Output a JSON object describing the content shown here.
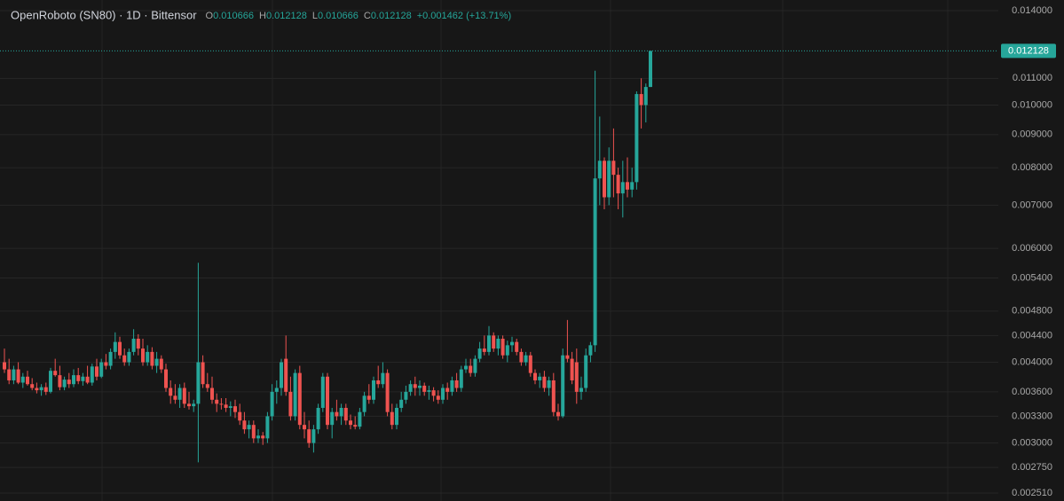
{
  "chart_data": {
    "type": "candlestick",
    "title": "OpenRoboto (SN80) · 1D · Bittensor",
    "ohlc_labels": [
      "O",
      "H",
      "L",
      "C"
    ],
    "change": "+0.001462 (+13.71%)",
    "up_color": "#26a69a",
    "down_color": "#ef5350",
    "log": true,
    "grid": true,
    "ylim": [
      0.00244,
      0.01454
    ],
    "yticks": [
      {
        "value": 0.014,
        "label": "0.014000"
      },
      {
        "value": 0.011,
        "label": "0.011000"
      },
      {
        "value": 0.01,
        "label": "0.010000"
      },
      {
        "value": 0.009,
        "label": "0.009000"
      },
      {
        "value": 0.008,
        "label": "0.008000"
      },
      {
        "value": 0.007,
        "label": "0.007000"
      },
      {
        "value": 0.006,
        "label": "0.006000"
      },
      {
        "value": 0.0054,
        "label": "0.005400"
      },
      {
        "value": 0.0048,
        "label": "0.004800"
      },
      {
        "value": 0.0044,
        "label": "0.004400"
      },
      {
        "value": 0.004,
        "label": "0.004000"
      },
      {
        "value": 0.0036,
        "label": "0.003600"
      },
      {
        "value": 0.0033,
        "label": "0.003300"
      },
      {
        "value": 0.003,
        "label": "0.003000"
      },
      {
        "value": 0.00275,
        "label": "0.002750"
      },
      {
        "value": 0.00251,
        "label": "0.002510"
      }
    ],
    "last_price": 0.012128,
    "ohlc": [
      [
        0.004,
        0.0042,
        0.00385,
        0.0039
      ],
      [
        0.0039,
        0.00405,
        0.0037,
        0.00375
      ],
      [
        0.00375,
        0.00395,
        0.0037,
        0.0039
      ],
      [
        0.0039,
        0.004,
        0.0037,
        0.00372
      ],
      [
        0.00372,
        0.00385,
        0.00365,
        0.0038
      ],
      [
        0.0038,
        0.00388,
        0.00368,
        0.0037
      ],
      [
        0.0037,
        0.00378,
        0.00362,
        0.00365
      ],
      [
        0.00365,
        0.00372,
        0.00358,
        0.00362
      ],
      [
        0.00362,
        0.0037,
        0.00355,
        0.00366
      ],
      [
        0.00366,
        0.00372,
        0.00356,
        0.0036
      ],
      [
        0.0036,
        0.00392,
        0.00358,
        0.00388
      ],
      [
        0.00388,
        0.00405,
        0.0038,
        0.00382
      ],
      [
        0.00382,
        0.00395,
        0.00362,
        0.00366
      ],
      [
        0.00366,
        0.0038,
        0.00362,
        0.00376
      ],
      [
        0.00376,
        0.00385,
        0.00365,
        0.0037
      ],
      [
        0.0037,
        0.0039,
        0.00366,
        0.00382
      ],
      [
        0.00382,
        0.00392,
        0.0037,
        0.00374
      ],
      [
        0.00374,
        0.00385,
        0.00368,
        0.0038
      ],
      [
        0.0038,
        0.00395,
        0.0037,
        0.00372
      ],
      [
        0.00372,
        0.00398,
        0.00368,
        0.00394
      ],
      [
        0.00394,
        0.00405,
        0.00375,
        0.0038
      ],
      [
        0.0038,
        0.00405,
        0.00378,
        0.004
      ],
      [
        0.004,
        0.00412,
        0.0039,
        0.00395
      ],
      [
        0.00395,
        0.0042,
        0.0039,
        0.00415
      ],
      [
        0.00415,
        0.00445,
        0.00405,
        0.0043
      ],
      [
        0.0043,
        0.00438,
        0.00405,
        0.0041
      ],
      [
        0.0041,
        0.0042,
        0.00395,
        0.004
      ],
      [
        0.004,
        0.0042,
        0.00395,
        0.00415
      ],
      [
        0.00415,
        0.0045,
        0.0041,
        0.00435
      ],
      [
        0.00435,
        0.00442,
        0.0041,
        0.0042
      ],
      [
        0.0042,
        0.00435,
        0.00395,
        0.004
      ],
      [
        0.004,
        0.00425,
        0.00395,
        0.00415
      ],
      [
        0.00415,
        0.00422,
        0.0039,
        0.00395
      ],
      [
        0.00395,
        0.00415,
        0.00385,
        0.00405
      ],
      [
        0.00405,
        0.0041,
        0.00385,
        0.0039
      ],
      [
        0.0039,
        0.00398,
        0.0036,
        0.00365
      ],
      [
        0.00365,
        0.00375,
        0.00345,
        0.00355
      ],
      [
        0.00355,
        0.0037,
        0.00345,
        0.0035
      ],
      [
        0.0035,
        0.0037,
        0.0034,
        0.00365
      ],
      [
        0.00365,
        0.00372,
        0.0034,
        0.00345
      ],
      [
        0.00345,
        0.0036,
        0.00338,
        0.00342
      ],
      [
        0.00342,
        0.0035,
        0.00335,
        0.00345
      ],
      [
        0.00345,
        0.0057,
        0.0028,
        0.004
      ],
      [
        0.004,
        0.0041,
        0.00365,
        0.0037
      ],
      [
        0.0037,
        0.00385,
        0.0036,
        0.00365
      ],
      [
        0.00365,
        0.0038,
        0.00345,
        0.0035
      ],
      [
        0.0035,
        0.00358,
        0.00335,
        0.00345
      ],
      [
        0.00345,
        0.00352,
        0.00338,
        0.00344
      ],
      [
        0.00344,
        0.00352,
        0.00335,
        0.0034
      ],
      [
        0.0034,
        0.00348,
        0.0033,
        0.00342
      ],
      [
        0.00342,
        0.0035,
        0.00328,
        0.00335
      ],
      [
        0.00335,
        0.00345,
        0.0032,
        0.00325
      ],
      [
        0.00325,
        0.00335,
        0.0031,
        0.00315
      ],
      [
        0.00315,
        0.00325,
        0.00305,
        0.0032
      ],
      [
        0.0032,
        0.00325,
        0.003,
        0.00305
      ],
      [
        0.00305,
        0.00315,
        0.003,
        0.00308
      ],
      [
        0.00308,
        0.00312,
        0.00298,
        0.00305
      ],
      [
        0.00305,
        0.00335,
        0.003,
        0.0033
      ],
      [
        0.0033,
        0.0037,
        0.00325,
        0.0036
      ],
      [
        0.0036,
        0.00375,
        0.00345,
        0.00365
      ],
      [
        0.00365,
        0.00405,
        0.00355,
        0.004
      ],
      [
        0.00405,
        0.0044,
        0.00355,
        0.0036
      ],
      [
        0.0036,
        0.0038,
        0.00325,
        0.0033
      ],
      [
        0.0033,
        0.0039,
        0.00325,
        0.00385
      ],
      [
        0.00385,
        0.00395,
        0.00315,
        0.0032
      ],
      [
        0.0032,
        0.00335,
        0.00305,
        0.00315
      ],
      [
        0.00315,
        0.00325,
        0.00295,
        0.003
      ],
      [
        0.003,
        0.0032,
        0.0029,
        0.00315
      ],
      [
        0.00315,
        0.00345,
        0.0031,
        0.0034
      ],
      [
        0.0034,
        0.00385,
        0.00335,
        0.0038
      ],
      [
        0.0038,
        0.00385,
        0.00315,
        0.0032
      ],
      [
        0.0032,
        0.0034,
        0.00305,
        0.00335
      ],
      [
        0.00335,
        0.0035,
        0.00325,
        0.0033
      ],
      [
        0.0033,
        0.00345,
        0.0032,
        0.0034
      ],
      [
        0.0034,
        0.00345,
        0.0032,
        0.00325
      ],
      [
        0.00325,
        0.00332,
        0.00315,
        0.0032
      ],
      [
        0.0032,
        0.0033,
        0.00315,
        0.00318
      ],
      [
        0.00318,
        0.0034,
        0.00315,
        0.00335
      ],
      [
        0.00335,
        0.0036,
        0.0033,
        0.00355
      ],
      [
        0.00355,
        0.0037,
        0.00345,
        0.0035
      ],
      [
        0.0035,
        0.0038,
        0.00345,
        0.00375
      ],
      [
        0.00375,
        0.00395,
        0.00365,
        0.0037
      ],
      [
        0.0037,
        0.004,
        0.00365,
        0.00385
      ],
      [
        0.00385,
        0.0039,
        0.0033,
        0.00335
      ],
      [
        0.00335,
        0.00345,
        0.00315,
        0.0032
      ],
      [
        0.0032,
        0.00345,
        0.00315,
        0.0034
      ],
      [
        0.0034,
        0.0036,
        0.00335,
        0.0035
      ],
      [
        0.0035,
        0.00368,
        0.00345,
        0.0036
      ],
      [
        0.0036,
        0.00375,
        0.00355,
        0.0037
      ],
      [
        0.0037,
        0.0038,
        0.00355,
        0.00365
      ],
      [
        0.00365,
        0.00375,
        0.00355,
        0.00368
      ],
      [
        0.00368,
        0.00372,
        0.00355,
        0.0036
      ],
      [
        0.0036,
        0.00368,
        0.0035,
        0.00362
      ],
      [
        0.00362,
        0.00366,
        0.00348,
        0.00355
      ],
      [
        0.00355,
        0.00362,
        0.00345,
        0.0035
      ],
      [
        0.0035,
        0.0037,
        0.00345,
        0.00365
      ],
      [
        0.00365,
        0.00372,
        0.0035,
        0.0036
      ],
      [
        0.0036,
        0.0038,
        0.00355,
        0.00375
      ],
      [
        0.00375,
        0.00385,
        0.0036,
        0.00365
      ],
      [
        0.00365,
        0.00395,
        0.0036,
        0.0039
      ],
      [
        0.0039,
        0.00405,
        0.00385,
        0.00395
      ],
      [
        0.00395,
        0.00405,
        0.0038,
        0.00385
      ],
      [
        0.00385,
        0.0041,
        0.0038,
        0.00405
      ],
      [
        0.00405,
        0.0043,
        0.004,
        0.0042
      ],
      [
        0.0042,
        0.0044,
        0.0041,
        0.00415
      ],
      [
        0.00415,
        0.00455,
        0.0041,
        0.0044
      ],
      [
        0.0044,
        0.00445,
        0.00415,
        0.0042
      ],
      [
        0.0042,
        0.0044,
        0.0041,
        0.00435
      ],
      [
        0.00435,
        0.0044,
        0.00405,
        0.0041
      ],
      [
        0.0041,
        0.00432,
        0.004,
        0.00425
      ],
      [
        0.00425,
        0.00438,
        0.00415,
        0.0043
      ],
      [
        0.0043,
        0.00435,
        0.0041,
        0.00415
      ],
      [
        0.00415,
        0.0042,
        0.00395,
        0.004
      ],
      [
        0.004,
        0.00415,
        0.00395,
        0.0041
      ],
      [
        0.0041,
        0.00415,
        0.0038,
        0.00385
      ],
      [
        0.00385,
        0.0039,
        0.0037,
        0.00375
      ],
      [
        0.00375,
        0.00385,
        0.00365,
        0.0038
      ],
      [
        0.0038,
        0.00388,
        0.0036,
        0.00365
      ],
      [
        0.00365,
        0.0038,
        0.00355,
        0.00375
      ],
      [
        0.00375,
        0.00385,
        0.0033,
        0.00335
      ],
      [
        0.00335,
        0.00345,
        0.00325,
        0.0033
      ],
      [
        0.0033,
        0.0042,
        0.00328,
        0.0041
      ],
      [
        0.0041,
        0.00465,
        0.004,
        0.00405
      ],
      [
        0.00405,
        0.00415,
        0.0037,
        0.00375
      ],
      [
        0.004,
        0.0042,
        0.00345,
        0.0036
      ],
      [
        0.0036,
        0.0038,
        0.0035,
        0.00365
      ],
      [
        0.00365,
        0.0042,
        0.0036,
        0.0041
      ],
      [
        0.0041,
        0.0043,
        0.004,
        0.00425
      ],
      [
        0.00425,
        0.0113,
        0.00415,
        0.0077
      ],
      [
        0.0077,
        0.0096,
        0.007,
        0.0082
      ],
      [
        0.0082,
        0.0083,
        0.0069,
        0.0072
      ],
      [
        0.0072,
        0.0086,
        0.007,
        0.0082
      ],
      [
        0.0082,
        0.0092,
        0.0072,
        0.0078
      ],
      [
        0.0078,
        0.008,
        0.0069,
        0.0073
      ],
      [
        0.0073,
        0.0082,
        0.0067,
        0.0076
      ],
      [
        0.0076,
        0.0083,
        0.0072,
        0.0074
      ],
      [
        0.0074,
        0.008,
        0.0072,
        0.0076
      ],
      [
        0.0076,
        0.0105,
        0.0074,
        0.0104
      ],
      [
        0.0104,
        0.011,
        0.0092,
        0.01
      ],
      [
        0.01,
        0.0108,
        0.0094,
        0.010666
      ],
      [
        0.010666,
        0.012128,
        0.010666,
        0.012128
      ]
    ]
  }
}
